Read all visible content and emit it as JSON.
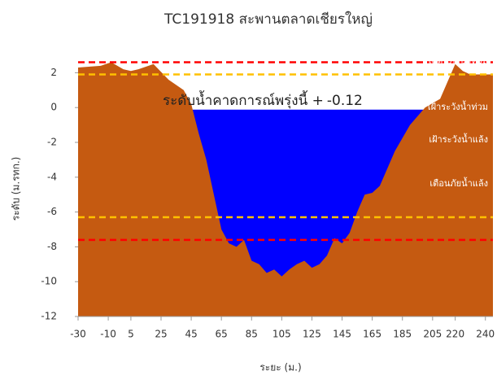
{
  "chart_data": {
    "type": "area",
    "title": "TC191918 สะพานตลาดเชียรใหญ่",
    "x_label": "ระยะ (ม.)",
    "y_label": "ระดับ (ม.รทก.)",
    "x": [
      -30,
      -15,
      -8,
      0,
      5,
      10,
      20,
      30,
      40,
      45,
      50,
      55,
      60,
      65,
      70,
      75,
      80,
      85,
      90,
      95,
      100,
      105,
      110,
      115,
      120,
      125,
      130,
      135,
      140,
      145,
      150,
      155,
      160,
      165,
      170,
      180,
      190,
      200,
      210,
      220,
      225,
      230,
      245
    ],
    "values": [
      2.3,
      2.4,
      2.6,
      2.2,
      2.1,
      2.2,
      2.5,
      1.6,
      1.0,
      0.2,
      -1.5,
      -3,
      -5,
      -7,
      -7.8,
      -8,
      -7.6,
      -8.8,
      -9,
      -9.5,
      -9.3,
      -9.7,
      -9.3,
      -9,
      -8.8,
      -9.2,
      -9,
      -8.5,
      -7.5,
      -7.8,
      -7.2,
      -6,
      -5,
      -4.9,
      -4.5,
      -2.5,
      -1,
      0,
      0.5,
      2.5,
      2.1,
      1.9,
      1.9
    ],
    "color": "#c55a11",
    "water_level": -0.12,
    "water_color": "#0000ff",
    "water_annotation": "ระดับน้ำคาดการณ์พรุ่งนี้ +",
    "thresholds": [
      {
        "label": "เตือนภัยน้ำท่วม",
        "value": 2.6,
        "color": "#ff0000"
      },
      {
        "label": "เฝ้าระวังน้ำท่วม",
        "value": 1.9,
        "color": "#ffc000"
      },
      {
        "label": "เฝ้าระวังน้ำแล้ง",
        "value": -6.3,
        "color": "#ffc000"
      },
      {
        "label": "เตือนภัยน้ำแล้ง",
        "value": -7.6,
        "color": "#ff0000"
      }
    ],
    "xlim": [
      -30,
      245
    ],
    "xticks": [
      -30,
      -10,
      5,
      25,
      45,
      65,
      85,
      105,
      125,
      145,
      165,
      185,
      205,
      220,
      240
    ],
    "ylim": [
      -12,
      3
    ],
    "yticks": [
      -12,
      -10,
      -8,
      -6,
      -4,
      -2,
      0,
      2
    ]
  }
}
